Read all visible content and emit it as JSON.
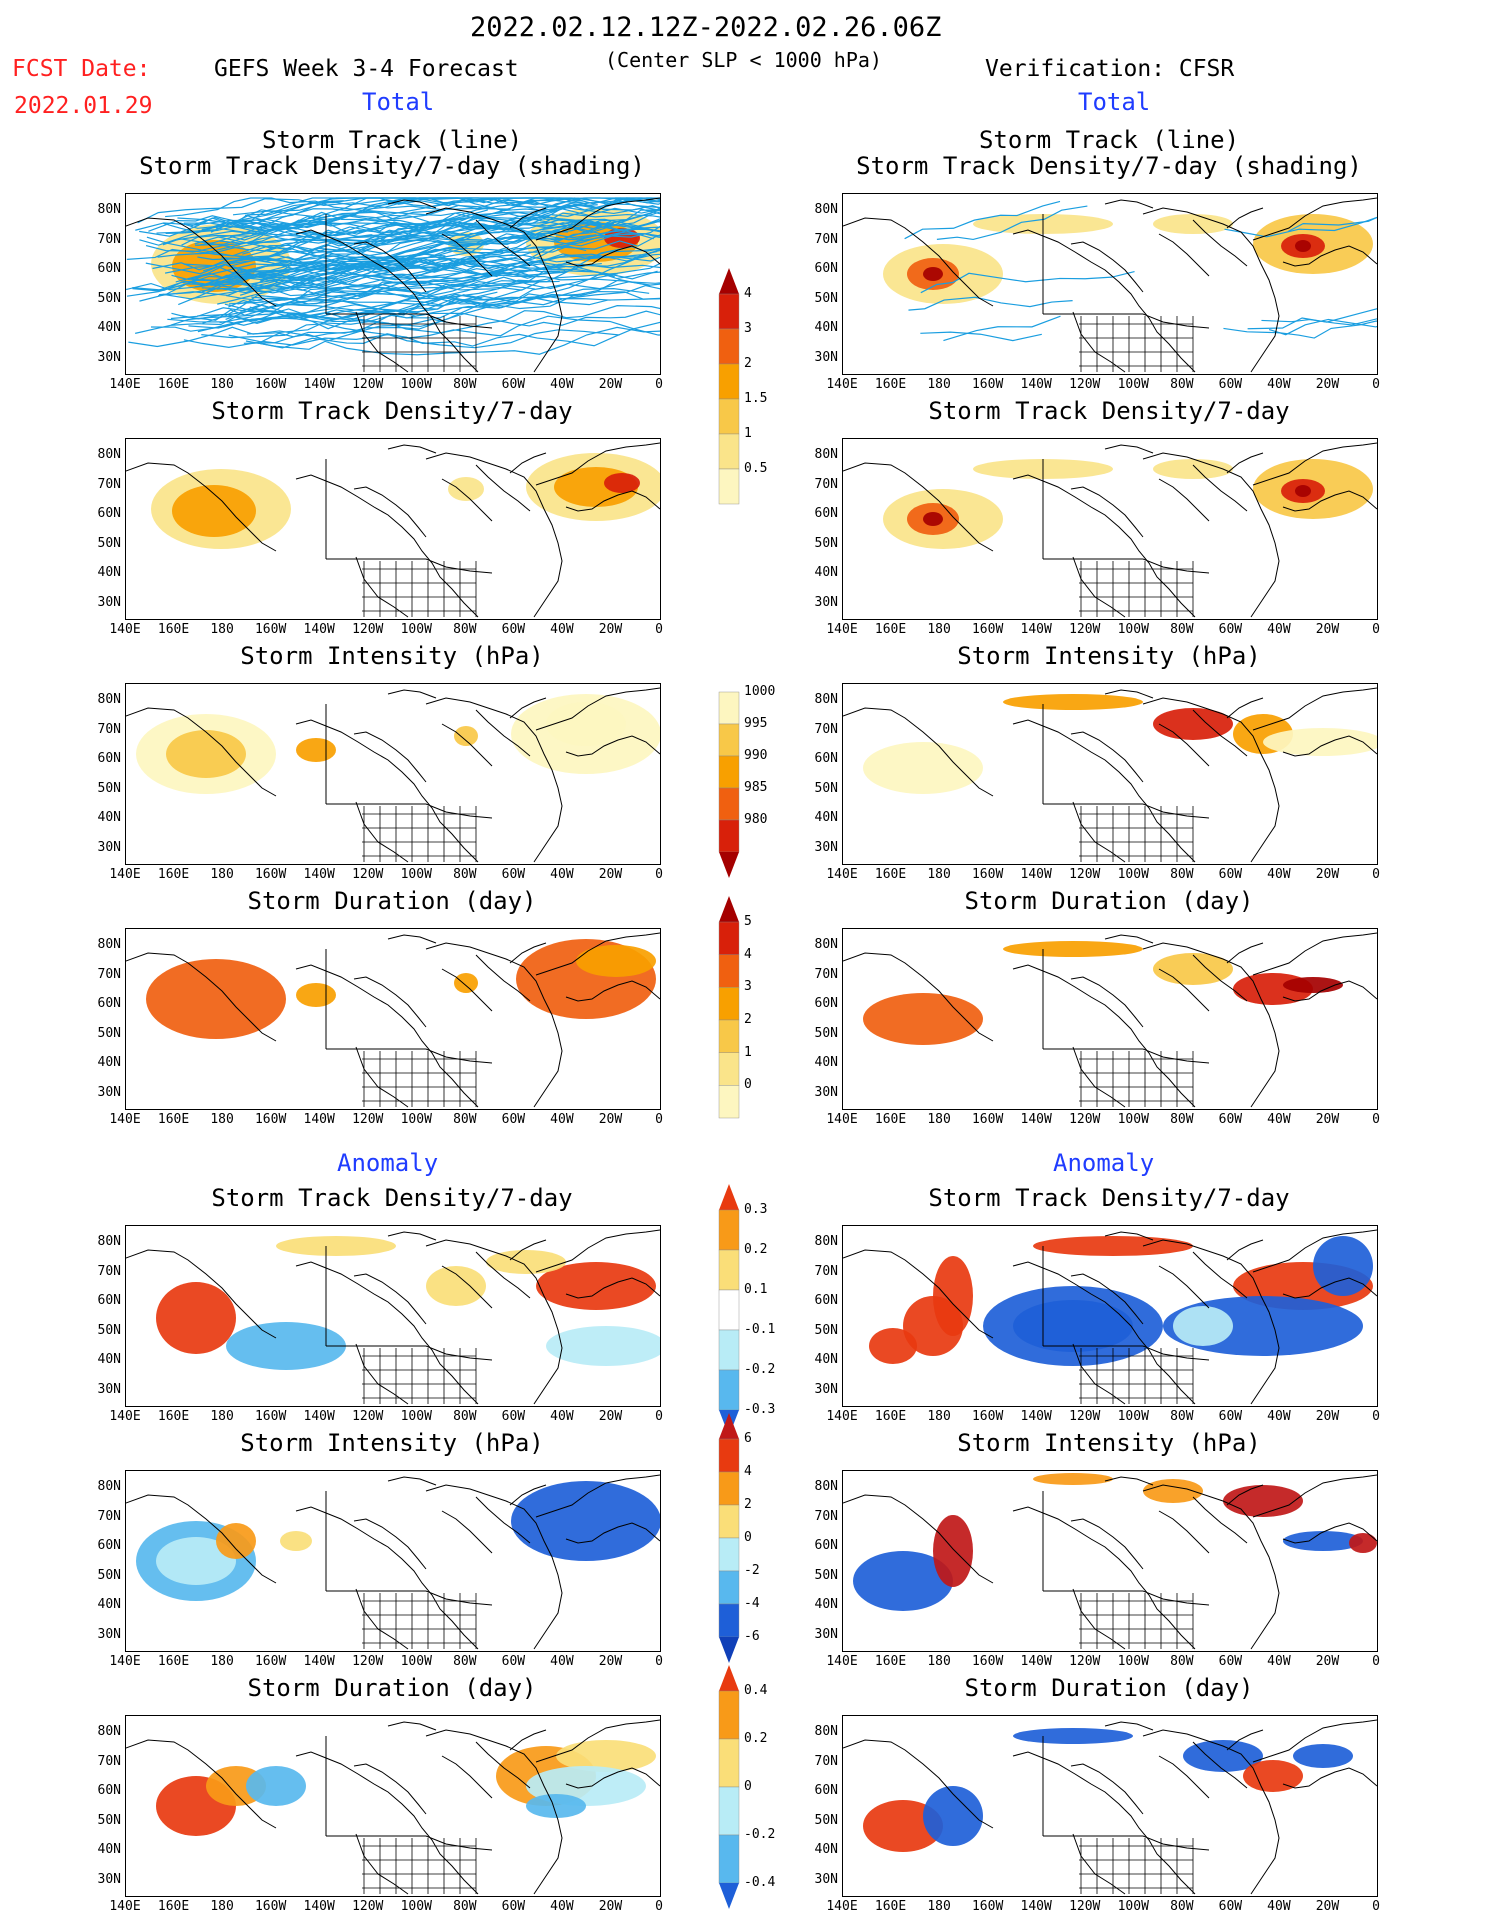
{
  "header": {
    "date_range": "2022.02.12.12Z-2022.02.26.06Z",
    "fcst_label": "FCST Date:",
    "fcst_date": "2022.01.29",
    "left_model": "GEFS Week 3-4 Forecast",
    "center_note": "(Center SLP < 1000 hPa)",
    "right_model": "Verification: CFSR"
  },
  "sections": {
    "total_left": "Total",
    "total_right": "Total",
    "anomaly_left": "Anomaly",
    "anomaly_right": "Anomaly"
  },
  "axes": {
    "y_labels": [
      "80N",
      "70N",
      "60N",
      "50N",
      "40N",
      "30N"
    ],
    "x_labels": [
      "140E",
      "160E",
      "180",
      "160W",
      "140W",
      "120W",
      "100W",
      "80W",
      "60W",
      "40W",
      "20W",
      "0"
    ]
  },
  "rows": [
    {
      "left_title": [
        "Storm Track (line)",
        "Storm Track Density/7-day (shading)"
      ],
      "right_title": [
        "Storm Track (line)",
        "Storm Track Density/7-day (shading)"
      ]
    },
    {
      "left_title": [
        "Storm Track Density/7-day"
      ],
      "right_title": [
        "Storm Track Density/7-day"
      ]
    },
    {
      "left_title": [
        "Storm Intensity (hPa)"
      ],
      "right_title": [
        "Storm Intensity (hPa)"
      ]
    },
    {
      "left_title": [
        "Storm Duration (day)"
      ],
      "right_title": [
        "Storm Duration (day)"
      ]
    },
    {
      "left_title": [
        "Storm Track Density/7-day"
      ],
      "right_title": [
        "Storm Track Density/7-day"
      ]
    },
    {
      "left_title": [
        "Storm Intensity (hPa)"
      ],
      "right_title": [
        "Storm Intensity (hPa)"
      ]
    },
    {
      "left_title": [
        "Storm Duration (day)"
      ],
      "right_title": [
        "Storm Duration (day)"
      ]
    }
  ],
  "colorbars": {
    "density": {
      "labels": [
        "4",
        "3",
        "2",
        "1.5",
        "1",
        "0.5"
      ],
      "colors": [
        "#a50000",
        "#d8200a",
        "#f06010",
        "#f8a000",
        "#f8c848",
        "#fae48a",
        "#fdf6c0"
      ]
    },
    "intensity": {
      "labels": [
        "1000",
        "995",
        "990",
        "985",
        "980"
      ],
      "colors": [
        "#fdf6c0",
        "#f8c848",
        "#f8a000",
        "#f06010",
        "#d8200a",
        "#a50000"
      ]
    },
    "duration": {
      "labels": [
        "5",
        "4",
        "3",
        "2",
        "1",
        "0"
      ],
      "colors": [
        "#a50000",
        "#d8200a",
        "#f06010",
        "#f8a000",
        "#f8c848",
        "#fae48a",
        "#fdf6c0"
      ]
    },
    "density_anom": {
      "labels": [
        "0.3",
        "0.2",
        "0.1",
        "-0.1",
        "-0.2",
        "-0.3"
      ],
      "colors": [
        "#e83a10",
        "#f89a18",
        "#fade78",
        "#ffffff",
        "#b8ecf6",
        "#58b8ee",
        "#1e5fd8"
      ]
    },
    "intensity_anom": {
      "labels": [
        "6",
        "4",
        "2",
        "0",
        "-2",
        "-4",
        "-6"
      ],
      "colors": [
        "#c01818",
        "#e83a10",
        "#f89a18",
        "#fade78",
        "#b8ecf6",
        "#58b8ee",
        "#1e5fd8",
        "#1040b8"
      ]
    },
    "duration_anom": {
      "labels": [
        "0.4",
        "0.2",
        "0",
        "-0.2",
        "-0.4"
      ],
      "colors": [
        "#e83a10",
        "#f89a18",
        "#fade78",
        "#b8ecf6",
        "#58b8ee",
        "#1e5fd8"
      ]
    }
  },
  "colors": {
    "track_line": "#1a9ee0",
    "title_red": "#ff2020",
    "section_blue": "#1f3cff"
  }
}
